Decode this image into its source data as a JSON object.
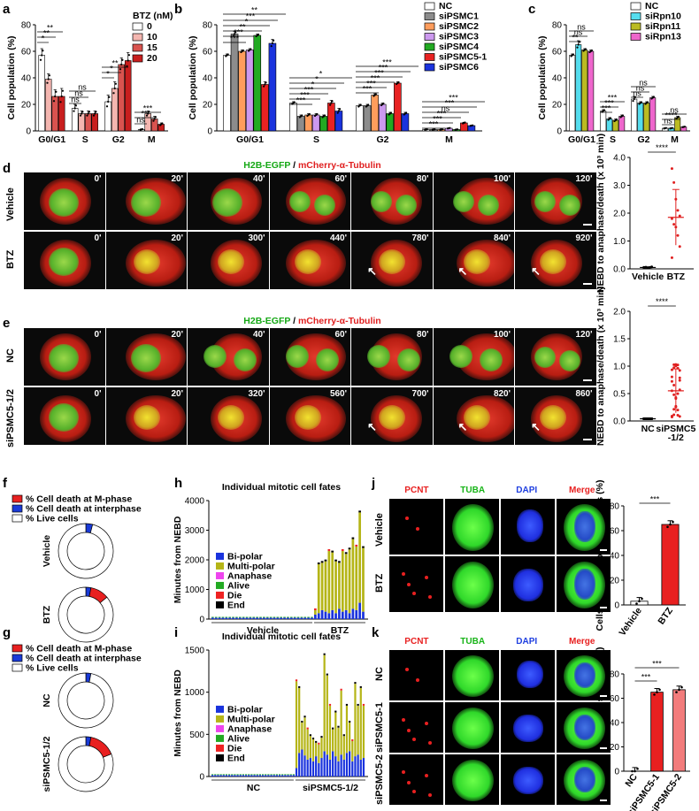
{
  "panels": {
    "a": "a",
    "b": "b",
    "c": "c",
    "d": "d",
    "e": "e",
    "f": "f",
    "g": "g",
    "h": "h",
    "i": "i",
    "j": "j",
    "k": "k"
  },
  "common": {
    "ylabel_pop": "Cell population (%)",
    "phases": [
      "G0/G1",
      "S",
      "G2",
      "M"
    ],
    "sig": {
      "ns": "ns",
      "s1": "*",
      "s2": "**",
      "s3": "***",
      "s4": "****"
    }
  },
  "chart_data": [
    {
      "id": "a",
      "type": "bar",
      "legend_title": "BTZ (nM)",
      "categories": [
        "G0/G1",
        "S",
        "G2",
        "M"
      ],
      "ylim": [
        0,
        80
      ],
      "yticks": [
        0,
        20,
        40,
        60,
        80
      ],
      "colors": [
        "#ffffff",
        "#f4b6b0",
        "#d9534f",
        "#c81e1e"
      ],
      "series": [
        {
          "name": "0",
          "values": [
            57,
            17,
            22,
            1
          ]
        },
        {
          "name": "10",
          "values": [
            39,
            13,
            32,
            13
          ]
        },
        {
          "name": "15",
          "values": [
            26,
            13,
            50,
            9
          ]
        },
        {
          "name": "20",
          "values": [
            26,
            13,
            53,
            5
          ]
        }
      ],
      "errors": [
        [
          5,
          3,
          5,
          0.5
        ],
        [
          4,
          2,
          5,
          2
        ],
        [
          5,
          2,
          5,
          2
        ],
        [
          6,
          2,
          6,
          1
        ]
      ]
    },
    {
      "id": "b",
      "type": "bar",
      "categories": [
        "G0/G1",
        "S",
        "G2",
        "M"
      ],
      "ylim": [
        0,
        80
      ],
      "yticks": [
        0,
        20,
        40,
        60,
        80
      ],
      "colors": [
        "#ffffff",
        "#8c8c8c",
        "#ff9d5c",
        "#cc99ee",
        "#22aa22",
        "#e82222",
        "#1a33dd"
      ],
      "series": [
        {
          "name": "NC",
          "values": [
            57,
            21,
            19,
            1
          ]
        },
        {
          "name": "siPSMC1",
          "values": [
            73,
            11,
            19,
            1
          ]
        },
        {
          "name": "siPSMC2",
          "values": [
            60,
            12,
            27,
            1
          ]
        },
        {
          "name": "siPSMC3",
          "values": [
            61,
            12,
            20,
            2
          ]
        },
        {
          "name": "siPSMC4",
          "values": [
            72,
            11,
            13,
            1
          ]
        },
        {
          "name": "siPSMC5-1",
          "values": [
            35,
            21,
            36,
            6
          ]
        },
        {
          "name": "siPSMC6",
          "values": [
            66,
            15,
            13,
            4
          ]
        }
      ],
      "errors": [
        [
          1,
          1,
          1,
          0.3
        ],
        [
          2,
          1,
          1,
          0.3
        ],
        [
          1,
          1,
          1,
          0.3
        ],
        [
          1,
          1,
          1,
          0.3
        ],
        [
          1,
          1,
          1,
          0.3
        ],
        [
          2,
          2,
          1,
          0.5
        ],
        [
          3,
          2,
          1,
          0.3
        ]
      ]
    },
    {
      "id": "c",
      "type": "bar",
      "categories": [
        "G0/G1",
        "S",
        "G2",
        "M"
      ],
      "ylim": [
        0,
        80
      ],
      "yticks": [
        0,
        20,
        40,
        60,
        80
      ],
      "colors": [
        "#ffffff",
        "#55ddee",
        "#bbbb22",
        "#ee66cc"
      ],
      "series": [
        {
          "name": "NC",
          "values": [
            57,
            15,
            24,
            2
          ]
        },
        {
          "name": "siRpn10",
          "values": [
            65,
            9,
            21,
            2
          ]
        },
        {
          "name": "siRpn11",
          "values": [
            61,
            8,
            21,
            10
          ]
        },
        {
          "name": "siRpn13",
          "values": [
            60,
            11,
            25,
            3
          ]
        }
      ],
      "errors": [
        [
          1,
          1,
          2,
          0.3
        ],
        [
          3,
          1,
          1,
          0.3
        ],
        [
          1,
          1,
          1,
          1
        ],
        [
          1,
          1,
          1,
          0.3
        ]
      ]
    },
    {
      "id": "d_right",
      "type": "scatter",
      "ylabel": "NEBD to anaphase/death (x 10³ min)",
      "categories": [
        "Vehicle",
        "BTZ"
      ],
      "ylim": [
        0,
        4
      ],
      "yticks": [
        "0.0",
        "1.0",
        "2.0",
        "3.0",
        "4.0"
      ],
      "means": [
        0.05,
        1.85
      ],
      "sd": [
        0.02,
        1.0
      ],
      "points": {
        "Vehicle": [
          0.05,
          0.06,
          0.04,
          0.05,
          0.07,
          0.05
        ],
        "BTZ": [
          3.6,
          3.1,
          2.5,
          2.1,
          1.9,
          1.8,
          1.6,
          1.5,
          1.2,
          0.8,
          0.4
        ]
      }
    },
    {
      "id": "e_right",
      "type": "scatter",
      "ylabel": "NEBD to anaphase/death (x 10³ min)",
      "categories": [
        "NC",
        "siPSMC5 -1/2"
      ],
      "ylim": [
        0,
        2
      ],
      "yticks": [
        "0.0",
        "0.5",
        "1.0",
        "1.5",
        "2.0"
      ],
      "means": [
        0.04,
        0.55
      ],
      "sd": [
        0.01,
        0.4
      ]
    },
    {
      "id": "f",
      "type": "pie",
      "legend": [
        "% Cell death at M-phase",
        "% Cell death at interphase",
        "% Live cells"
      ],
      "colors": [
        "#e82020",
        "#1a3ad8",
        "#ffffff"
      ],
      "rings": [
        {
          "label": "Vehicle",
          "values": [
            0,
            4,
            96
          ]
        },
        {
          "label": "BTZ",
          "values": [
            11,
            3,
            86
          ]
        }
      ]
    },
    {
      "id": "g",
      "type": "pie",
      "legend": [
        "% Cell death at M-phase",
        "% Cell death at interphase",
        "% Live cells"
      ],
      "colors": [
        "#e82020",
        "#1a3ad8",
        "#ffffff"
      ],
      "rings": [
        {
          "label": "NC",
          "values": [
            0,
            3,
            97
          ]
        },
        {
          "label": "siPSMC5-1/2",
          "values": [
            16,
            3,
            81
          ]
        }
      ]
    },
    {
      "id": "h",
      "type": "bar",
      "title": "Individual mitotic cell fates",
      "ylabel": "Minutes from NEBD",
      "ylim": [
        0,
        4000
      ],
      "yticks": [
        0,
        1000,
        2000,
        3000,
        4000
      ],
      "groups": [
        "Vehicle",
        "BTZ"
      ],
      "legend": [
        "Bi-polar",
        "Multi-polar",
        "Anaphase",
        "Alive",
        "Die",
        "End"
      ],
      "colors": [
        "#1a33dd",
        "#b5b517",
        "#ee44ee",
        "#22aa22",
        "#ee2222",
        "#000000"
      ],
      "btz_totals": [
        300,
        1850,
        1900,
        1950,
        2300,
        2250,
        1950,
        1900,
        2300,
        2200,
        2350,
        2700,
        2450,
        3600,
        2400
      ],
      "btz_bipolar": [
        150,
        200,
        300,
        250,
        200,
        300,
        200,
        350,
        250,
        300,
        200,
        350,
        300,
        550,
        250
      ]
    },
    {
      "id": "i",
      "type": "bar",
      "title": "Individual mitotic cell fates",
      "ylabel": "Minutes from NEBD",
      "ylim": [
        0,
        1500
      ],
      "yticks": [
        0,
        500,
        1000,
        1500
      ],
      "groups": [
        "NC",
        "siPSMC5-1/2"
      ],
      "legend": [
        "Bi-polar",
        "Multi-polar",
        "Anaphase",
        "Alive",
        "Die",
        "End"
      ],
      "colors": [
        "#1a33dd",
        "#b5b517",
        "#ee44ee",
        "#22aa22",
        "#ee2222",
        "#000000"
      ],
      "si_totals": [
        1130,
        1050,
        640,
        700,
        560,
        480,
        440,
        400,
        380,
        460,
        1440,
        1200,
        840,
        560,
        760,
        580,
        1020,
        480,
        840,
        640,
        420,
        1100,
        840,
        1050,
        840
      ],
      "si_bipolar": [
        100,
        280,
        320,
        250,
        200,
        220,
        180,
        240,
        160,
        220,
        300,
        260,
        200,
        300,
        240,
        180,
        260,
        200,
        280,
        300,
        180,
        240,
        260,
        200,
        220
      ]
    },
    {
      "id": "j_right",
      "type": "bar",
      "ylabel": "Cells with multi-polar spindles (%)",
      "categories": [
        "Vehicle",
        "BTZ"
      ],
      "values": [
        3,
        65
      ],
      "ylim": [
        0,
        80
      ],
      "yticks": [
        0,
        20,
        40,
        60,
        80
      ],
      "colors": [
        "#ffffff",
        "#e82020"
      ]
    },
    {
      "id": "k_right",
      "type": "bar",
      "ylabel": "Cells with multi-polar spindles (%)",
      "categories": [
        "NC",
        "siPSMC5-1",
        "siPSMC5-2"
      ],
      "values": [
        0,
        65,
        67
      ],
      "ylim": [
        0,
        80
      ],
      "yticks": [
        0,
        20,
        40,
        60,
        80
      ],
      "colors": [
        "#ffffff",
        "#e82020",
        "#f27c7c"
      ]
    }
  ],
  "microscopy": {
    "title_green": "H2B-EGFP",
    "title_sep": " / ",
    "title_red": "mCherry-α-Tubulin",
    "d_rows": [
      {
        "label": "Vehicle",
        "times": [
          "0'",
          "20'",
          "40'",
          "60'",
          "80'",
          "100'",
          "120'"
        ]
      },
      {
        "label": "BTZ",
        "times": [
          "0'",
          "20'",
          "300'",
          "440'",
          "780'",
          "840'",
          "920'"
        ]
      }
    ],
    "e_rows": [
      {
        "label": "NC",
        "times": [
          "0'",
          "20'",
          "40'",
          "60'",
          "80'",
          "100'",
          "120'"
        ]
      },
      {
        "label": "siPSMC5-1/2",
        "times": [
          "0'",
          "20'",
          "320'",
          "560'",
          "700'",
          "820'",
          "860'"
        ]
      }
    ]
  },
  "if": {
    "channels": [
      "PCNT",
      "TUBA",
      "DAPI",
      "Merge"
    ],
    "j_rows": [
      "Vehicle",
      "BTZ"
    ],
    "k_rows": [
      "NC",
      "siPSMC5-1",
      "siPSMC5-2"
    ]
  }
}
